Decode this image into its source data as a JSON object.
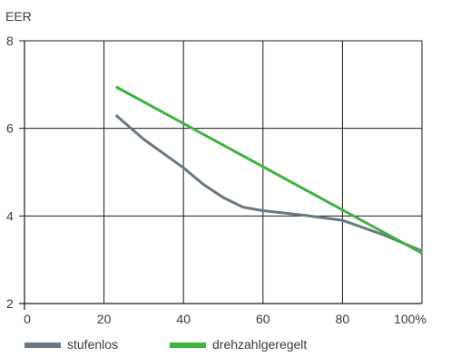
{
  "chart_data": {
    "type": "line",
    "title": "",
    "xlabel": "",
    "ylabel": "EER",
    "x_unit": "%",
    "xlim": [
      0,
      100
    ],
    "ylim": [
      2,
      8
    ],
    "x_ticks": [
      0,
      20,
      40,
      60,
      80,
      100
    ],
    "y_ticks": [
      2,
      4,
      6,
      8
    ],
    "x_tick_labels": [
      "0",
      "20",
      "40",
      "60",
      "80",
      "100"
    ],
    "y_tick_labels": [
      "2",
      "4",
      "6",
      "8"
    ],
    "grid": true,
    "legend_position": "bottom",
    "series": [
      {
        "name": "stufenlos",
        "color": "#697882",
        "x": [
          23,
          30,
          40,
          45,
          50,
          55,
          60,
          70,
          80,
          90,
          100
        ],
        "y": [
          6.3,
          5.75,
          5.1,
          4.72,
          4.42,
          4.2,
          4.12,
          4.02,
          3.9,
          3.58,
          3.2
        ]
      },
      {
        "name": "drehzahlgeregelt",
        "color": "#3db53d",
        "x": [
          23,
          100
        ],
        "y": [
          6.95,
          3.15
        ]
      }
    ]
  }
}
